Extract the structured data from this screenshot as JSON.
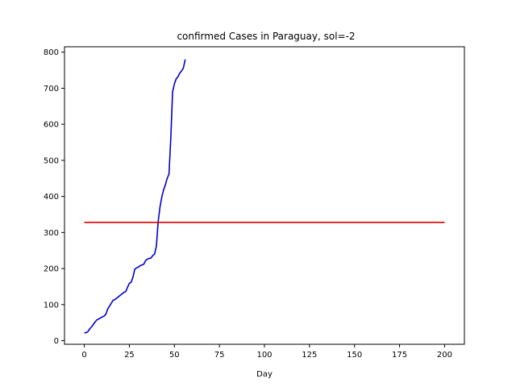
{
  "chart_data": {
    "type": "line",
    "title": "confirmed Cases in Paraguay, sol=-2",
    "xlabel": "Day",
    "ylabel": "",
    "xlim": [
      -11,
      211
    ],
    "ylim": [
      -10,
      815
    ],
    "xticks": [
      0,
      25,
      50,
      75,
      100,
      125,
      150,
      175,
      200
    ],
    "yticks": [
      0,
      100,
      200,
      300,
      400,
      500,
      600,
      700,
      800
    ],
    "grid": false,
    "legend": "none",
    "series": [
      {
        "color": "#0000cc",
        "x": [
          0,
          1,
          2,
          3,
          4,
          5,
          6,
          7,
          8,
          9,
          10,
          11,
          12,
          13,
          14,
          15,
          16,
          17,
          18,
          19,
          20,
          21,
          22,
          23,
          24,
          25,
          26,
          27,
          28,
          29,
          30,
          31,
          32,
          33,
          34,
          35,
          36,
          37,
          38,
          39,
          40,
          41,
          42,
          43,
          44,
          45,
          46,
          47,
          48,
          49,
          50,
          51,
          52,
          53,
          54,
          55,
          56
        ],
        "y": [
          22,
          22,
          25,
          33,
          38,
          45,
          52,
          58,
          60,
          63,
          66,
          68,
          74,
          88,
          96,
          104,
          112,
          114,
          118,
          122,
          126,
          130,
          134,
          136,
          148,
          159,
          162,
          176,
          198,
          202,
          204,
          208,
          210,
          212,
          222,
          226,
          228,
          229,
          236,
          240,
          262,
          330,
          370,
          398,
          418,
          432,
          450,
          462,
          560,
          690,
          712,
          726,
          732,
          742,
          748,
          756,
          780
        ]
      },
      {
        "color": "#dd0000",
        "x": [
          0,
          200
        ],
        "y": [
          328,
          328
        ]
      }
    ]
  }
}
